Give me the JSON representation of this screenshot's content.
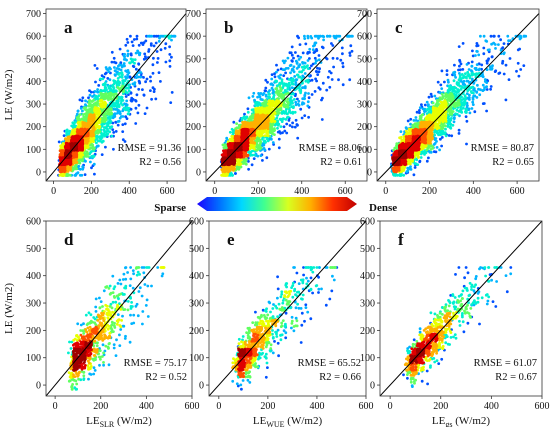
{
  "colorbar": {
    "left_label": "Sparse",
    "right_label": "Dense",
    "colors": [
      "#1a00ff",
      "#0070ff",
      "#00d8ff",
      "#40ff90",
      "#d8ff20",
      "#ffb000",
      "#ff3000",
      "#c00000"
    ]
  },
  "chart_data": [
    {
      "panel": "a",
      "type": "scatter",
      "xlim": [
        -40,
        700
      ],
      "ylim": [
        -40,
        720
      ],
      "xticks": [
        0,
        200,
        400,
        600
      ],
      "yticks": [
        0,
        100,
        200,
        300,
        400,
        500,
        600,
        700
      ],
      "ylabel": "LE (W/m2)",
      "rmse_text": "RMSE = 91.36",
      "r2_text": "R2 = 0.56",
      "n_points": 2600,
      "max_x": 620,
      "max_y": 600,
      "scatter_std": 95,
      "center": [
        40,
        45
      ],
      "one_to_one_line": true
    },
    {
      "panel": "b",
      "type": "scatter",
      "xlim": [
        -40,
        700
      ],
      "ylim": [
        -40,
        720
      ],
      "xticks": [
        0,
        200,
        400,
        600
      ],
      "yticks": [
        0,
        100,
        200,
        300,
        400,
        500,
        600,
        700
      ],
      "rmse_text": "RMSE = 88.06",
      "r2_text": "R2 = 0.61",
      "n_points": 2600,
      "max_x": 620,
      "max_y": 600,
      "scatter_std": 85,
      "center": [
        40,
        45
      ],
      "one_to_one_line": true
    },
    {
      "panel": "c",
      "type": "scatter",
      "xlim": [
        -40,
        700
      ],
      "ylim": [
        -40,
        720
      ],
      "xticks": [
        0,
        200,
        400,
        600
      ],
      "yticks": [
        0,
        100,
        200,
        300,
        400,
        500,
        600,
        700
      ],
      "rmse_text": "RMSE = 80.87",
      "r2_text": "R2 = 0.65",
      "n_points": 2600,
      "max_x": 620,
      "max_y": 600,
      "scatter_std": 75,
      "center": [
        40,
        45
      ],
      "one_to_one_line": true
    },
    {
      "panel": "d",
      "type": "scatter",
      "xlim": [
        -40,
        600
      ],
      "ylim": [
        -40,
        600
      ],
      "xticks": [
        0,
        200,
        400,
        600
      ],
      "yticks": [
        0,
        100,
        200,
        300,
        400,
        500,
        600
      ],
      "ylabel": "LE (W/m2)",
      "xlabel_main": "LE",
      "xlabel_sub": "SLR",
      "xlabel_unit": " (W/m2)",
      "rmse_text": "RMSE = 75.17",
      "r2_text": "R2 = 0.52",
      "n_points": 750,
      "max_x": 470,
      "max_y": 430,
      "scatter_std": 80,
      "center": [
        70,
        60
      ],
      "one_to_one_line": true
    },
    {
      "panel": "e",
      "type": "scatter",
      "xlim": [
        -40,
        600
      ],
      "ylim": [
        -40,
        600
      ],
      "xticks": [
        0,
        200,
        400,
        600
      ],
      "yticks": [
        0,
        100,
        200,
        300,
        400,
        500,
        600
      ],
      "xlabel_main": "LE",
      "xlabel_sub": "WUE",
      "xlabel_unit": " (W/m2)",
      "rmse_text": "RMSE = 65.52",
      "r2_text": "R2 = 0.66",
      "n_points": 750,
      "max_x": 470,
      "max_y": 430,
      "scatter_std": 65,
      "center": [
        70,
        60
      ],
      "one_to_one_line": true
    },
    {
      "panel": "f",
      "type": "scatter",
      "xlim": [
        -40,
        600
      ],
      "ylim": [
        -40,
        600
      ],
      "xticks": [
        0,
        200,
        400,
        600
      ],
      "yticks": [
        0,
        100,
        200,
        300,
        400,
        500,
        600
      ],
      "xlabel_main": "LE",
      "xlabel_sub": "gs",
      "xlabel_unit": " (W/m2)",
      "rmse_text": "RMSE = 61.07",
      "r2_text": "R2 = 0.67",
      "n_points": 750,
      "max_x": 470,
      "max_y": 430,
      "scatter_std": 60,
      "center": [
        70,
        60
      ],
      "one_to_one_line": true
    }
  ]
}
